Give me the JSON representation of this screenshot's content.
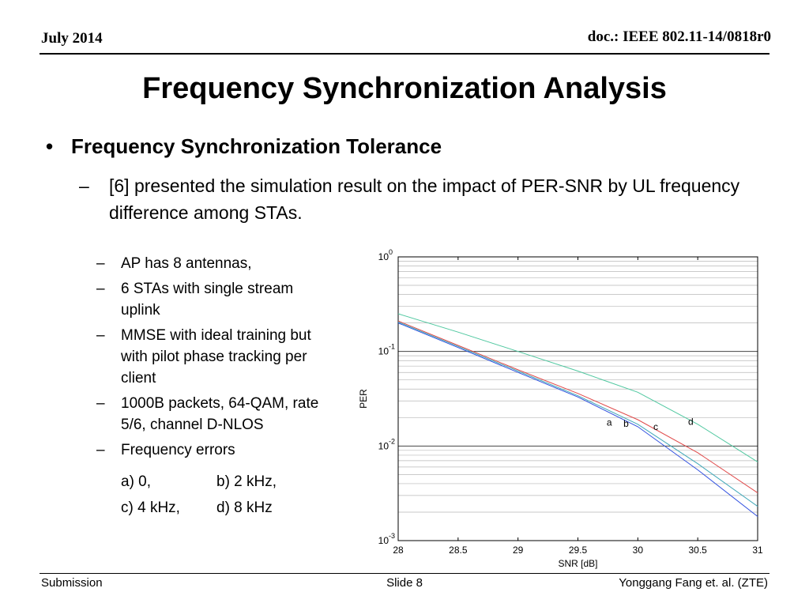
{
  "header": {
    "date": "July 2014",
    "doc": "doc.: IEEE 802.11-14/0818r0"
  },
  "title": "Frequency Synchronization Analysis",
  "bullet": {
    "symbol": "•",
    "text": "Frequency Synchronization  Tolerance",
    "sub": {
      "dash": "–",
      "text": "[6] presented the simulation result on the impact of PER-SNR by UL frequency difference among STAs."
    }
  },
  "conditions": [
    "AP has 8 antennas,",
    "6 STAs with single stream uplink",
    "MMSE with ideal training but with pilot phase tracking per client",
    "1000B packets, 64-QAM, rate 5/6, channel D-NLOS",
    "Frequency errors"
  ],
  "freq_options": [
    [
      "a) 0,",
      "b) 2 kHz,"
    ],
    [
      "c) 4 kHz,",
      "d) 8 kHz"
    ]
  ],
  "footer": {
    "left": "Submission",
    "center": "Slide 8",
    "right": "Yonggang Fang et. al. (ZTE)"
  },
  "chart_data": {
    "type": "line",
    "xlabel": "SNR [dB]",
    "ylabel": "PER",
    "xlim": [
      28,
      31
    ],
    "ylim": [
      0.001,
      1
    ],
    "yscale": "log",
    "xticks": [
      "28",
      "28.5",
      "29",
      "29.5",
      "30",
      "30.5",
      "31"
    ],
    "xtick_values": [
      28,
      28.5,
      29,
      29.5,
      30,
      30.5,
      31
    ],
    "yticks": [
      {
        "base": "10",
        "exp": "0",
        "value": 1
      },
      {
        "base": "10",
        "exp": "-1",
        "value": 0.1
      },
      {
        "base": "10",
        "exp": "-2",
        "value": 0.01
      },
      {
        "base": "10",
        "exp": "-3",
        "value": 0.001
      }
    ],
    "grid": true,
    "series": [
      {
        "name": "a",
        "color": "#3050e0",
        "x": [
          28,
          28.5,
          29,
          29.5,
          30,
          30.5,
          31
        ],
        "y": [
          0.2,
          0.11,
          0.06,
          0.033,
          0.016,
          0.0056,
          0.0018
        ],
        "label_at": [
          29.74,
          0.0165
        ]
      },
      {
        "name": "b",
        "color": "#40a8b8",
        "x": [
          28,
          28.5,
          29,
          29.5,
          30,
          30.5,
          31
        ],
        "y": [
          0.205,
          0.113,
          0.062,
          0.034,
          0.017,
          0.0065,
          0.0023
        ],
        "label_at": [
          29.88,
          0.016
        ]
      },
      {
        "name": "c",
        "color": "#e04a4a",
        "x": [
          28,
          28.5,
          29,
          29.5,
          30,
          30.5,
          31
        ],
        "y": [
          0.21,
          0.116,
          0.064,
          0.036,
          0.019,
          0.0085,
          0.0032
        ],
        "label_at": [
          30.13,
          0.0148
        ]
      },
      {
        "name": "d",
        "color": "#50c8a0",
        "x": [
          28,
          28.5,
          29,
          29.5,
          30,
          30.5,
          31
        ],
        "y": [
          0.25,
          0.16,
          0.1,
          0.062,
          0.037,
          0.017,
          0.0068
        ],
        "label_at": [
          30.42,
          0.0168
        ]
      }
    ]
  }
}
